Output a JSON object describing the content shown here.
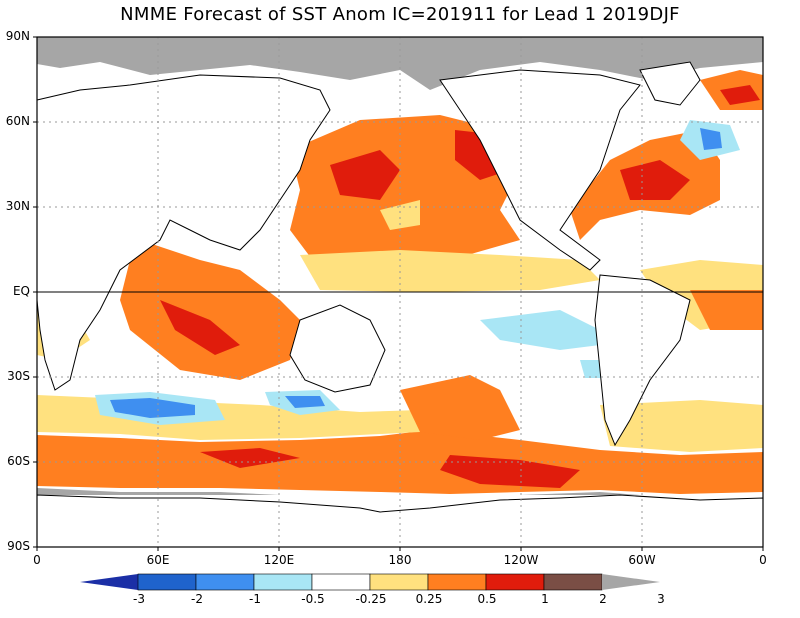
{
  "title": "NMME Forecast of SST Anom IC=201911 for Lead 1 2019DJF",
  "lat_labels": [
    "90N",
    "60N",
    "30N",
    "EQ",
    "30S",
    "60S",
    "90S"
  ],
  "lon_labels": [
    "0",
    "60E",
    "120E",
    "180",
    "120W",
    "60W",
    "0"
  ],
  "colorbar": {
    "labels": [
      "-3",
      "-2",
      "-1",
      "-0.5",
      "-0.25",
      "0.25",
      "0.5",
      "1",
      "2",
      "3"
    ],
    "colors": [
      "#1b2fa6",
      "#1f63cc",
      "#3f8ff0",
      "#a9e6f5",
      "#ffffff",
      "#ffe17f",
      "#ff7f20",
      "#e01c0c",
      "#7a4e45",
      "#a6a6a6"
    ]
  },
  "colors": {
    "land": "#ffffff",
    "sea_ice": "#a6a6a6",
    "coast": "#000000",
    "grid": "#999999"
  }
}
